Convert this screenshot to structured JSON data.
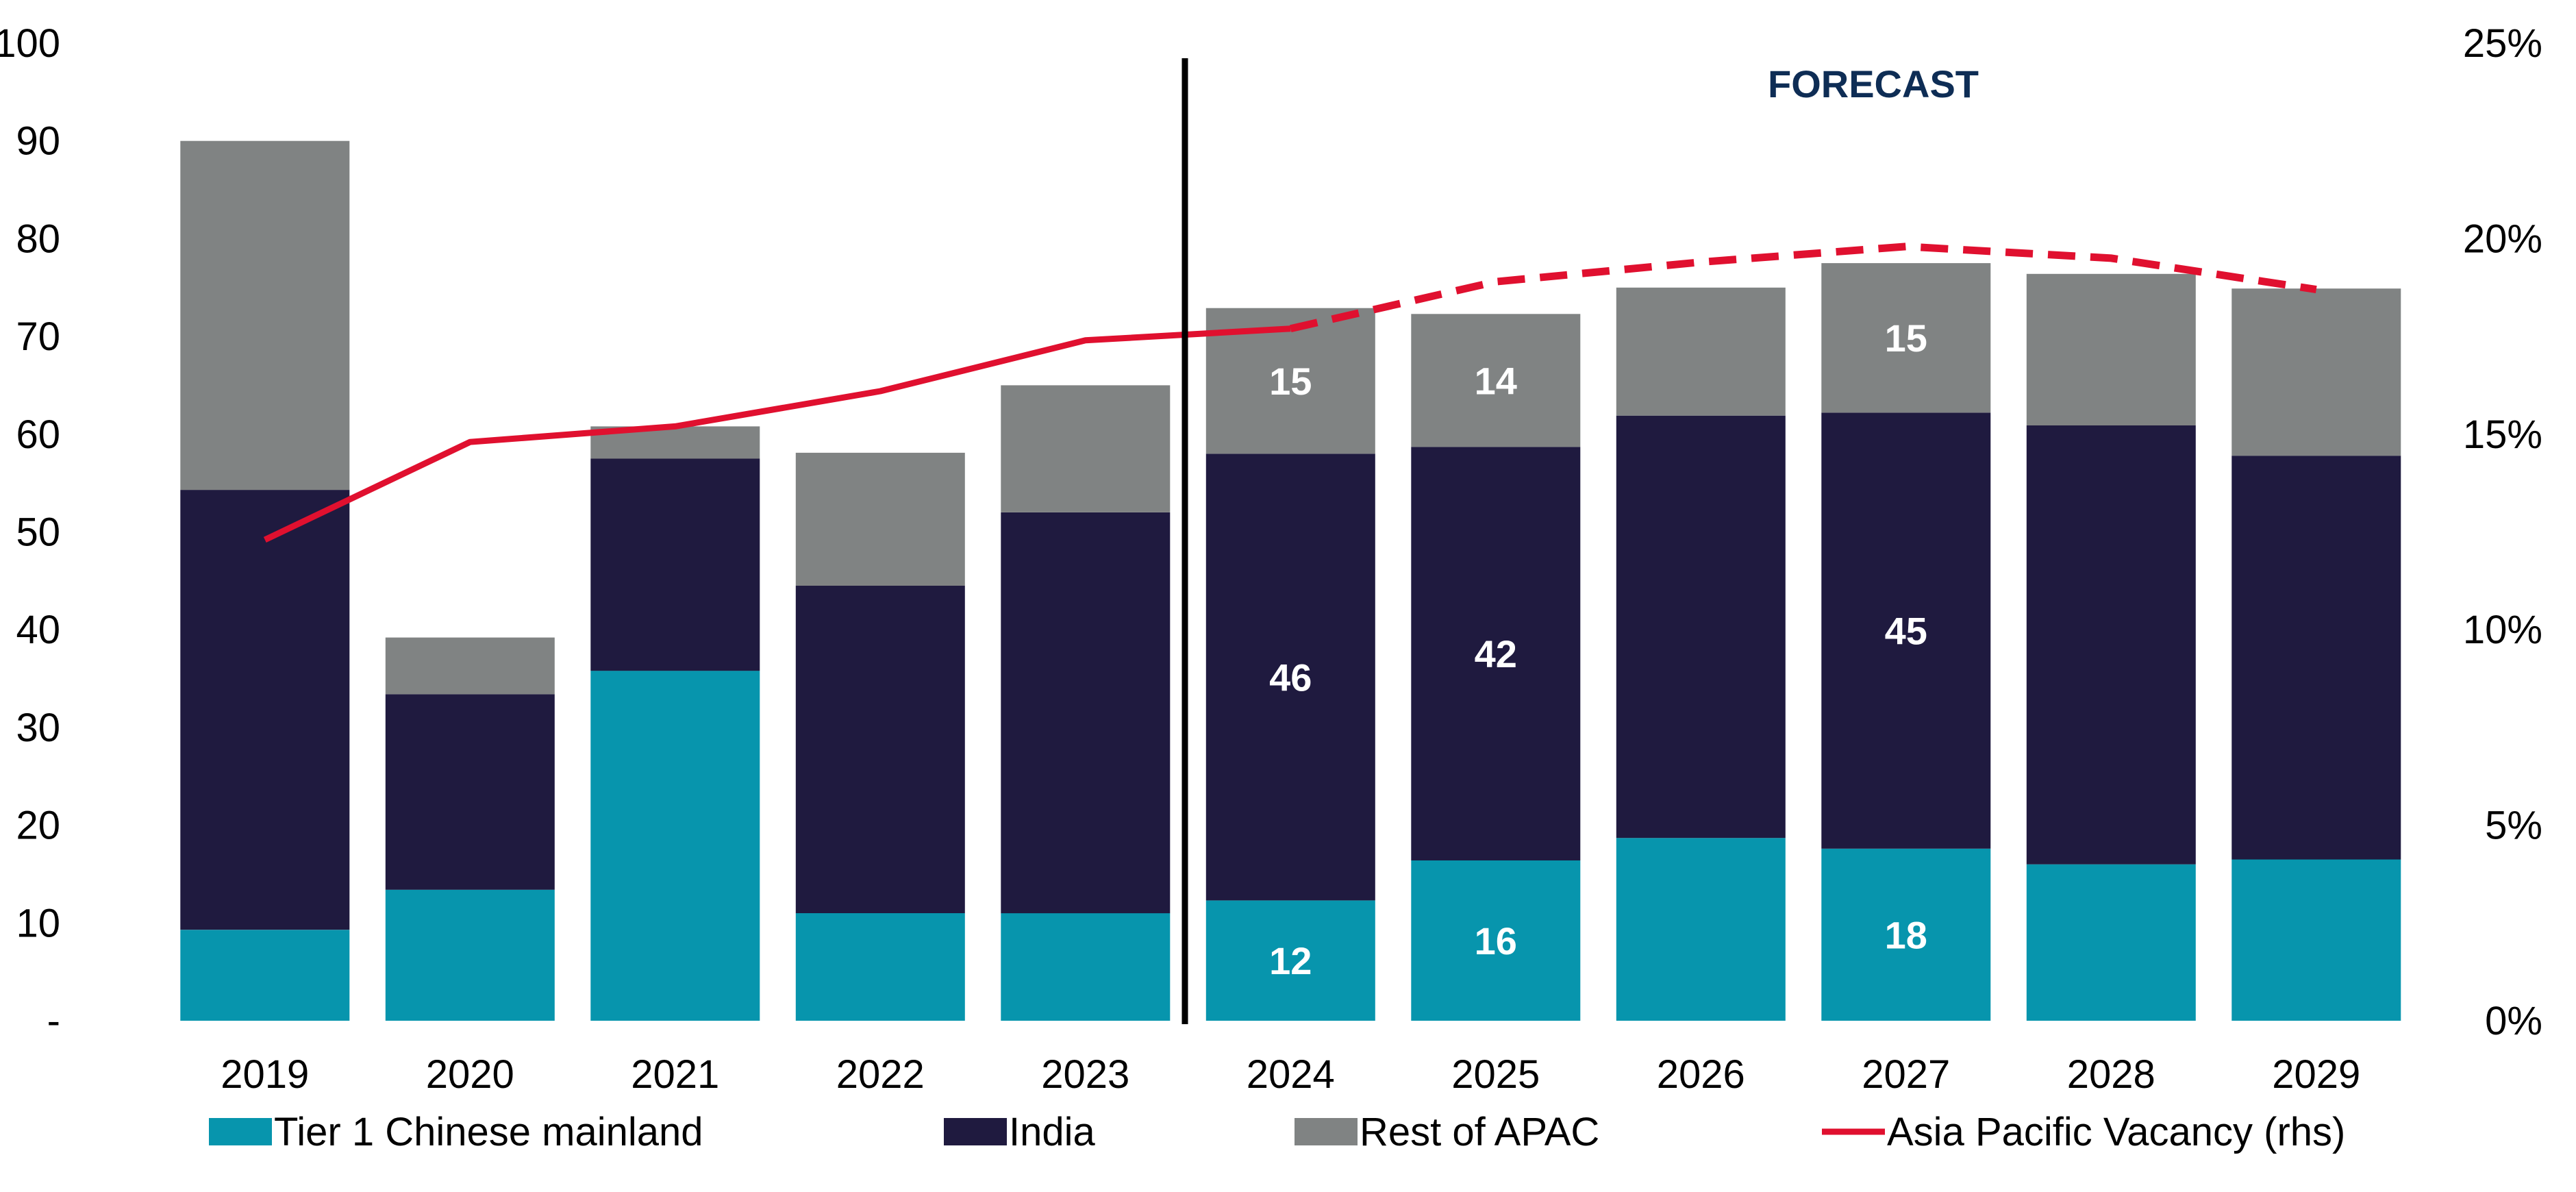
{
  "chart_data": {
    "type": "bar",
    "stacked": true,
    "categories": [
      "2019",
      "2020",
      "2021",
      "2022",
      "2023",
      "2024",
      "2025",
      "2026",
      "2027",
      "2028",
      "2029"
    ],
    "series": [
      {
        "name": "Tier 1 Chinese mainland",
        "color": "#0795ad",
        "values": [
          9.3,
          13.4,
          35.8,
          11.0,
          11.0,
          12.3,
          16.4,
          18.7,
          17.6,
          16.0,
          16.5
        ]
      },
      {
        "name": "India",
        "color": "#1f1a3f",
        "values": [
          45.0,
          20.0,
          21.7,
          33.5,
          41.0,
          45.7,
          42.3,
          43.2,
          44.6,
          44.9,
          41.3
        ]
      },
      {
        "name": "Rest of APAC",
        "color": "#808383",
        "values": [
          35.7,
          5.8,
          3.3,
          13.6,
          13.0,
          14.9,
          13.6,
          13.1,
          15.3,
          15.5,
          17.1
        ]
      }
    ],
    "data_labels": [
      {
        "category": "2024",
        "series": "Tier 1 Chinese mainland",
        "text": "12"
      },
      {
        "category": "2024",
        "series": "India",
        "text": "46"
      },
      {
        "category": "2024",
        "series": "Rest of APAC",
        "text": "15"
      },
      {
        "category": "2025",
        "series": "Tier 1 Chinese mainland",
        "text": "16"
      },
      {
        "category": "2025",
        "series": "India",
        "text": "42"
      },
      {
        "category": "2025",
        "series": "Rest of APAC",
        "text": "14"
      },
      {
        "category": "2027",
        "series": "Tier 1 Chinese mainland",
        "text": "18"
      },
      {
        "category": "2027",
        "series": "India",
        "text": "45"
      },
      {
        "category": "2027",
        "series": "Rest of APAC",
        "text": "15"
      }
    ],
    "line": {
      "name": "Asia Pacific Vacancy (rhs)",
      "color": "#e0102f",
      "axis": "right",
      "values": [
        12.3,
        14.8,
        15.2,
        16.1,
        17.4,
        17.7,
        18.9,
        19.4,
        19.8,
        19.5,
        18.7
      ],
      "dashed_from_category": "2024"
    },
    "ylim": [
      0,
      100
    ],
    "y_ticks": [
      "-",
      "10",
      "20",
      "30",
      "40",
      "50",
      "60",
      "70",
      "80",
      "90",
      "100"
    ],
    "y2lim": [
      0,
      25
    ],
    "y2_ticks": [
      "0%",
      "5%",
      "10%",
      "15%",
      "20%",
      "25%"
    ],
    "annotation": "FORECAST",
    "forecast_start_category": "2024",
    "grid": false,
    "legend_position": "bottom"
  }
}
